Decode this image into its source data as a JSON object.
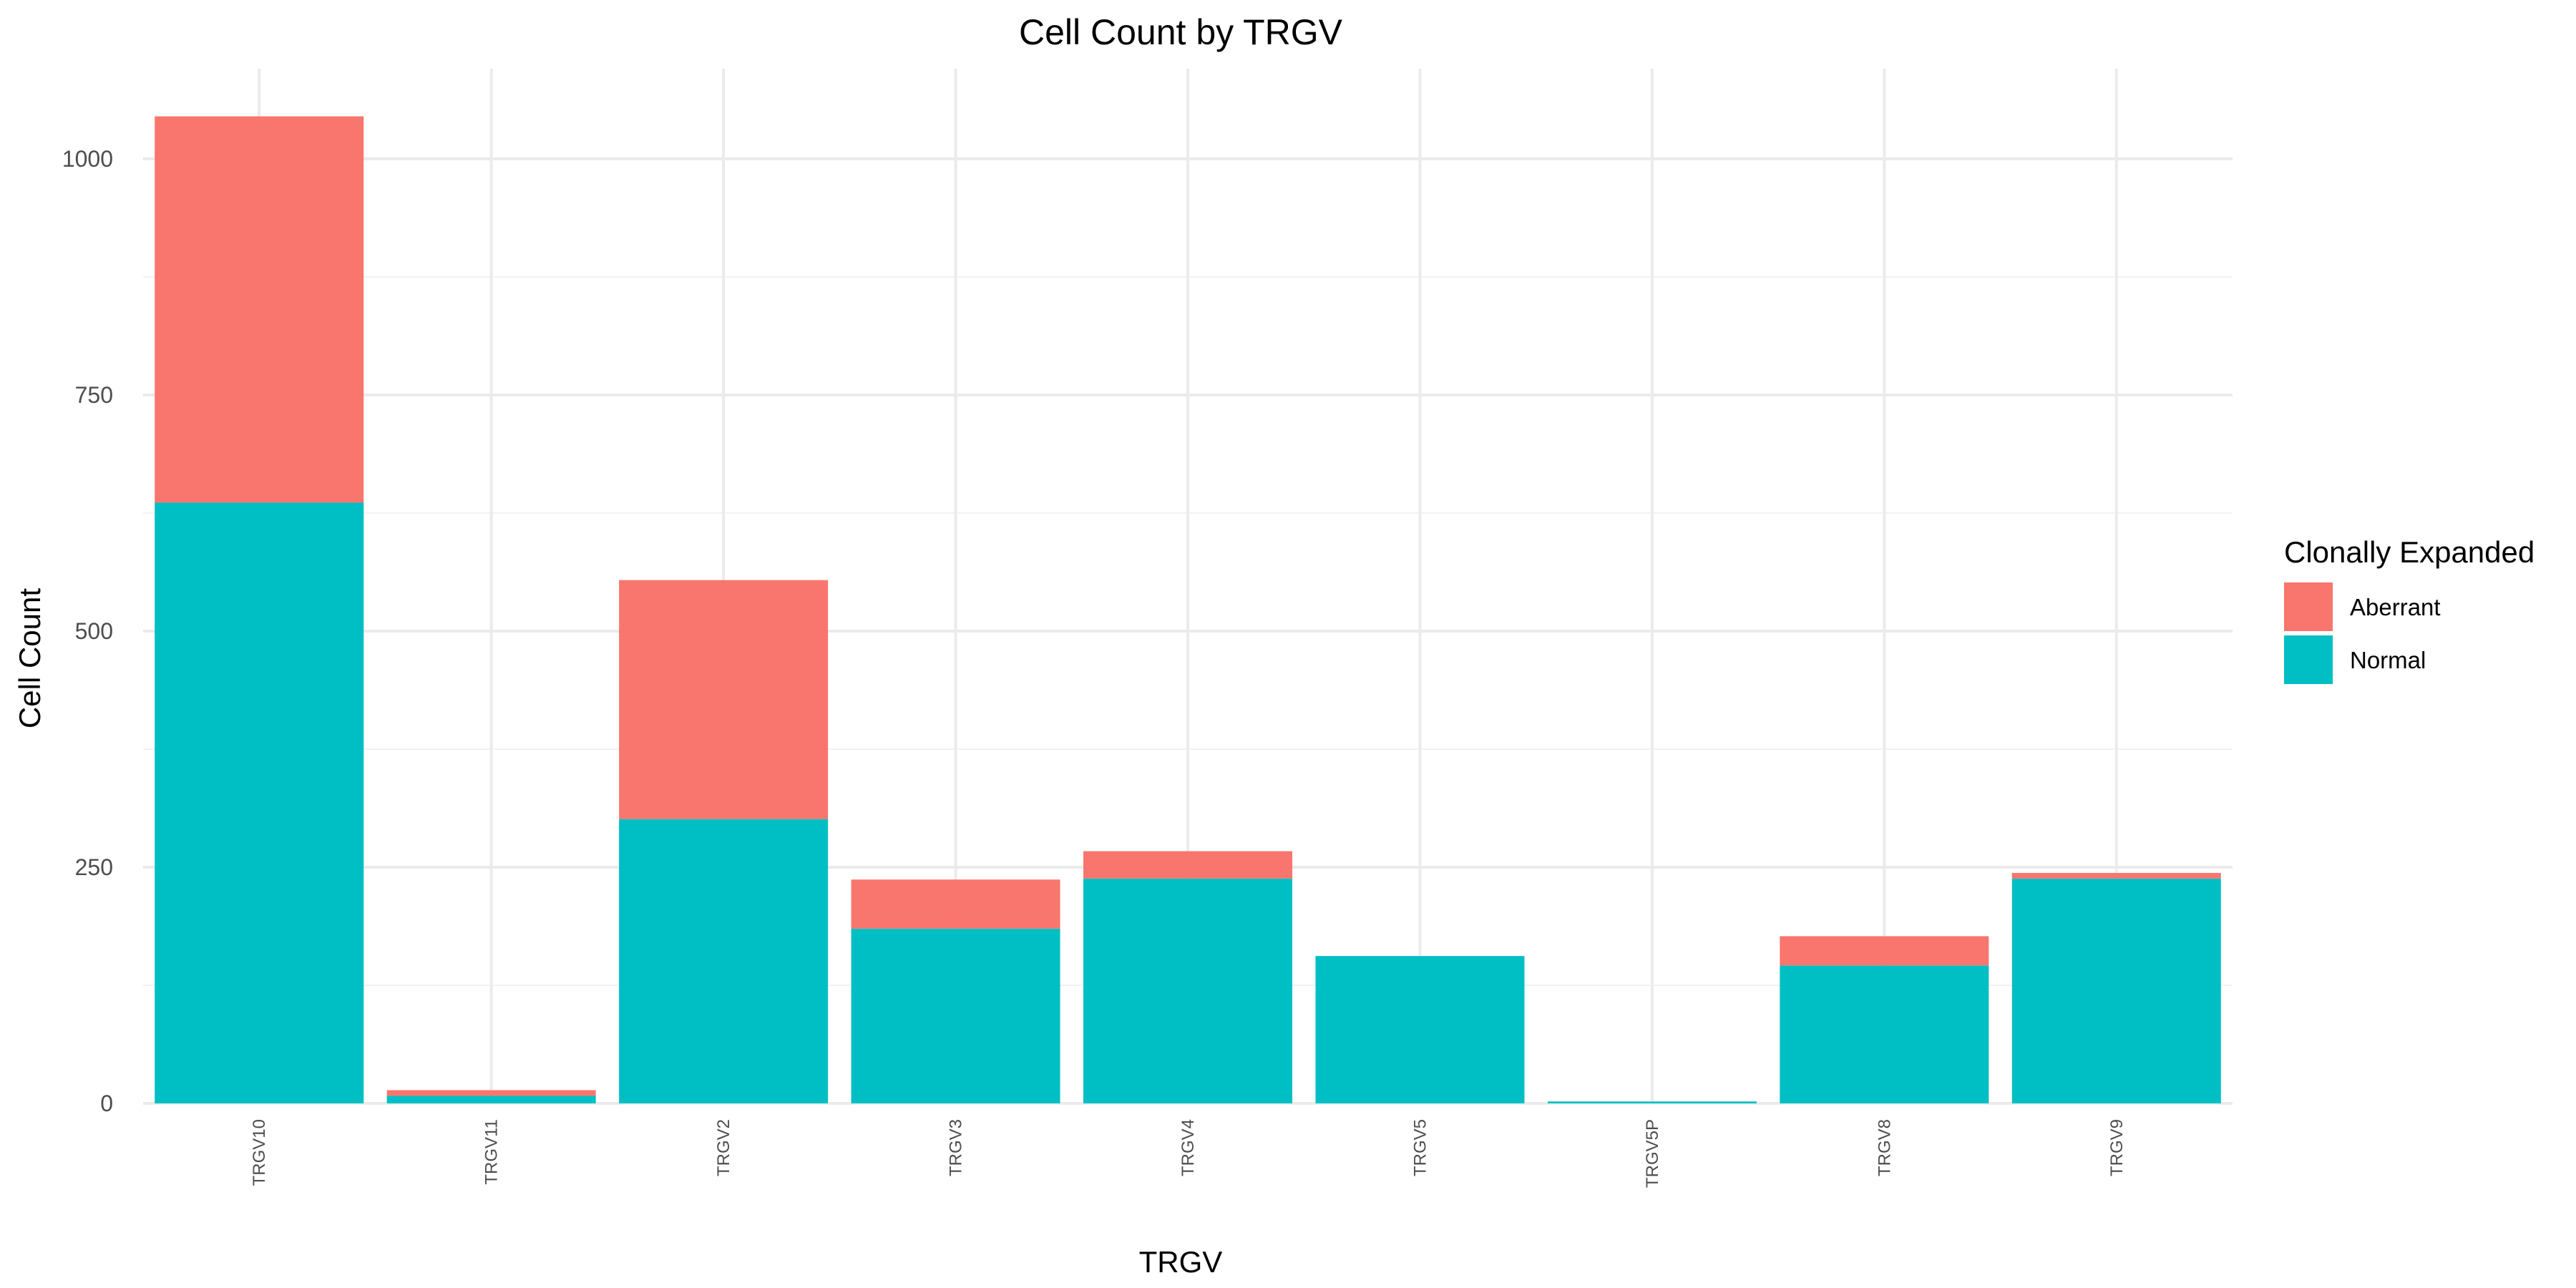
{
  "chart_data": {
    "type": "bar",
    "stacked": true,
    "title": "Cell Count by TRGV",
    "xlabel": "TRGV",
    "ylabel": "Cell Count",
    "categories": [
      "TRGV10",
      "TRGV11",
      "TRGV2",
      "TRGV3",
      "TRGV4",
      "TRGV5",
      "TRGV5P",
      "TRGV8",
      "TRGV9"
    ],
    "series": [
      {
        "name": "Normal",
        "color": "#00BFC4",
        "values": [
          636,
          8,
          301,
          185,
          238,
          156,
          2,
          146,
          238
        ]
      },
      {
        "name": "Aberrant",
        "color": "#F8766D",
        "values": [
          409,
          6,
          253,
          52,
          29,
          0,
          0,
          31,
          6
        ]
      }
    ],
    "ylim": [
      0,
      1045
    ],
    "yticks": [
      0,
      250,
      500,
      750,
      1000
    ],
    "grid": true,
    "legend": {
      "title": "Clonally Expanded",
      "placement": "right",
      "items": [
        "Aberrant",
        "Normal"
      ]
    }
  }
}
